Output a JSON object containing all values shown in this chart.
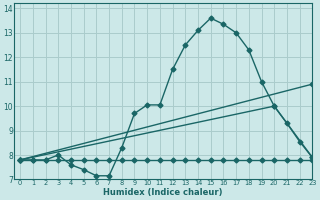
{
  "xlabel": "Humidex (Indice chaleur)",
  "bg_color": "#cce8e8",
  "grid_color": "#aacccc",
  "line_color": "#1a6666",
  "xlim": [
    -0.5,
    23
  ],
  "ylim": [
    7,
    14.2
  ],
  "xticks": [
    0,
    1,
    2,
    3,
    4,
    5,
    6,
    7,
    8,
    9,
    10,
    11,
    12,
    13,
    14,
    15,
    16,
    17,
    18,
    19,
    20,
    21,
    22,
    23
  ],
  "yticks": [
    7,
    8,
    9,
    10,
    11,
    12,
    13,
    14
  ],
  "lines": [
    {
      "x": [
        0,
        1,
        2,
        3,
        4,
        5,
        6,
        7,
        8,
        9,
        10,
        11,
        12,
        13,
        14,
        15,
        16,
        17,
        18,
        19,
        20,
        21,
        22,
        23
      ],
      "y": [
        7.8,
        7.8,
        7.8,
        7.8,
        7.8,
        7.8,
        7.8,
        7.8,
        7.8,
        7.8,
        7.8,
        7.8,
        7.8,
        7.8,
        7.8,
        7.8,
        7.8,
        7.8,
        7.8,
        7.8,
        7.8,
        7.8,
        7.8,
        7.8
      ]
    },
    {
      "x": [
        0,
        1,
        2,
        3,
        4,
        5,
        6,
        7,
        8,
        9,
        10,
        11,
        12,
        13,
        14,
        15,
        16,
        17,
        18,
        19,
        20,
        21,
        22,
        23
      ],
      "y": [
        7.8,
        7.8,
        7.8,
        8.0,
        7.6,
        7.4,
        7.15,
        7.15,
        8.3,
        9.7,
        10.05,
        10.05,
        11.5,
        12.5,
        13.1,
        13.6,
        13.35,
        13.0,
        12.3,
        11.0,
        10.0,
        9.3,
        8.55,
        7.9
      ]
    },
    {
      "x": [
        0,
        23
      ],
      "y": [
        7.8,
        10.9
      ]
    },
    {
      "x": [
        0,
        20,
        23
      ],
      "y": [
        7.8,
        10.0,
        7.9
      ]
    }
  ],
  "marker": "D",
  "markersize": 2.5,
  "linewidth": 1.0
}
